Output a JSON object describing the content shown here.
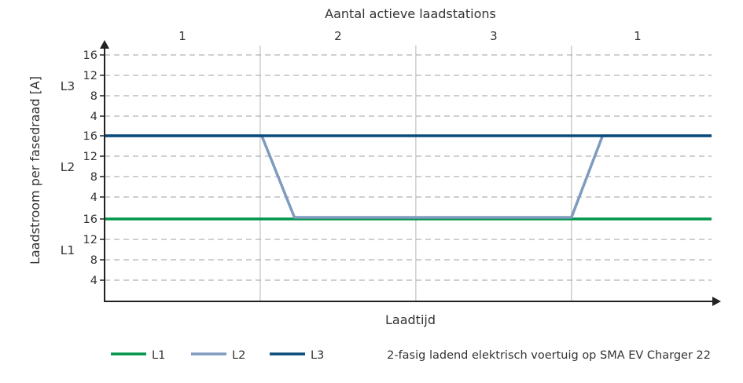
{
  "chart_data": {
    "type": "line",
    "title": "Aantal actieve laadstations",
    "xlabel": "Laadtijd",
    "ylabel": "Laadstroom per fasedraad [A]",
    "segments": [
      {
        "label": "1",
        "x_start": 0,
        "x_end": 1
      },
      {
        "label": "2",
        "x_start": 1,
        "x_end": 2
      },
      {
        "label": "3",
        "x_start": 2,
        "x_end": 3
      },
      {
        "label": "1",
        "x_start": 3,
        "x_end": 4
      }
    ],
    "phase_bands": [
      {
        "name": "L3",
        "ticks": [
          "4",
          "8",
          "12",
          "16"
        ],
        "ylim": [
          0,
          16
        ]
      },
      {
        "name": "L2",
        "ticks": [
          "4",
          "8",
          "12",
          "16"
        ],
        "ylim": [
          0,
          16
        ]
      },
      {
        "name": "L1",
        "ticks": [
          "4",
          "8",
          "12",
          "16"
        ],
        "ylim": [
          0,
          16
        ]
      }
    ],
    "xlim": [
      0,
      3.9
    ],
    "series": [
      {
        "name": "L1",
        "color": "#00954a",
        "band": "L1",
        "points": [
          [
            0,
            16
          ],
          [
            3.9,
            16
          ]
        ]
      },
      {
        "name": "L2",
        "color": "#7f9bc0",
        "band": "L2",
        "points": [
          [
            0,
            16
          ],
          [
            1.01,
            16
          ],
          [
            1.22,
            0
          ],
          [
            3.0,
            0
          ],
          [
            3.2,
            16
          ],
          [
            3.9,
            16
          ]
        ]
      },
      {
        "name": "L3",
        "color": "#0a4a7a",
        "band": "L2",
        "points": [
          [
            0,
            16
          ],
          [
            3.9,
            16
          ]
        ]
      }
    ],
    "grid": true,
    "legend_position": "bottom-left"
  },
  "legend": [
    {
      "label": "L1",
      "color": "#00954a"
    },
    {
      "label": "L2",
      "color": "#7f9bc0"
    },
    {
      "label": "L3",
      "color": "#0a4a7a"
    }
  ],
  "caption": "2-fasig ladend elektrisch voertuig op SMA EV Charger 22"
}
